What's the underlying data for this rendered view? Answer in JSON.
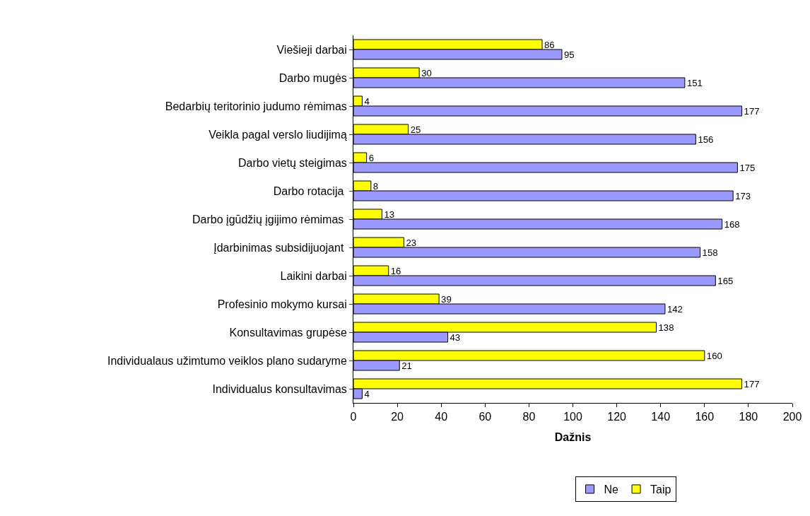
{
  "chart_data": {
    "type": "bar",
    "orientation": "horizontal",
    "xlabel": "Dažnis",
    "categories": [
      "Viešieji darbai",
      "Darbo mugės",
      "Bedarbių teritorinio judumo rėmimas",
      "Veikla pagal verslo liudijimą",
      "Darbo vietų steigimas",
      "Darbo rotacija ",
      "Darbo įgūdžių įgijimo rėmimas ",
      "Įdarbinimas subsidijuojant ",
      "Laikini darbai",
      "Profesinio mokymo kursai",
      "Konsultavimas grupėse",
      "Individualaus užimtumo veiklos plano sudaryme",
      "Individualus konsultavimas"
    ],
    "series": [
      {
        "name": "Ne",
        "color": "#9999ff",
        "values": [
          95,
          151,
          177,
          156,
          175,
          173,
          168,
          158,
          165,
          142,
          43,
          21,
          4
        ]
      },
      {
        "name": "Taip",
        "color": "#ffff00",
        "values": [
          86,
          30,
          4,
          25,
          6,
          8,
          13,
          23,
          16,
          39,
          138,
          160,
          177
        ]
      }
    ],
    "xlim": [
      0,
      200
    ],
    "xticks": [
      0,
      20,
      40,
      60,
      80,
      100,
      120,
      140,
      160,
      180,
      200
    ],
    "data_labels": true,
    "grid": false,
    "legend": "bottom"
  }
}
